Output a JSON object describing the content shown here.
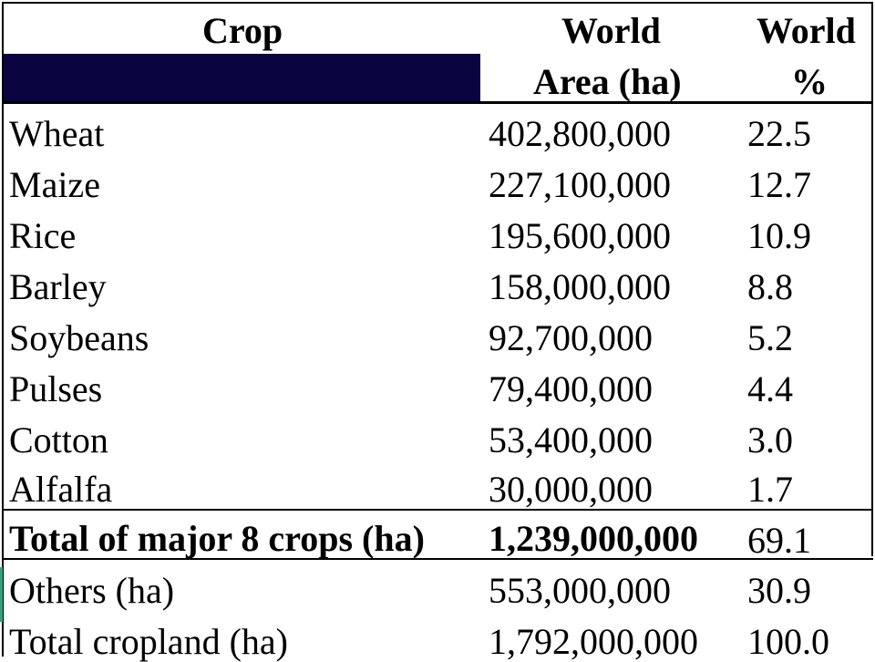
{
  "header": {
    "crop": "Crop",
    "area_line1": "World",
    "area_line2": "Area (ha)",
    "pct_line1": "World",
    "pct_line2": "%"
  },
  "rows": [
    {
      "crop": "Wheat",
      "area": "402,800,000",
      "pct": "22.5"
    },
    {
      "crop": "Maize",
      "area": "227,100,000",
      "pct": "12.7"
    },
    {
      "crop": "Rice",
      "area": "195,600,000",
      "pct": "10.9"
    },
    {
      "crop": "Barley",
      "area": "158,000,000",
      "pct": "8.8"
    },
    {
      "crop": "Soybeans",
      "area": "92,700,000",
      "pct": "5.2"
    },
    {
      "crop": "Pulses",
      "area": "79,400,000",
      "pct": "4.4"
    },
    {
      "crop": "Cotton",
      "area": "53,400,000",
      "pct": "3.0"
    },
    {
      "crop": "Alfalfa",
      "area": "30,000,000",
      "pct": "1.7"
    }
  ],
  "total_major": {
    "crop": "Total of major 8 crops (ha)",
    "area": "1,239,000,000",
    "pct": "69.1"
  },
  "others": {
    "crop": "Others (ha)",
    "area": "553,000,000",
    "pct": "30.9"
  },
  "total_cropland": {
    "crop": "Total cropland (ha)",
    "area": "1,792,000,000",
    "pct": "100.0"
  },
  "colors": {
    "banner": "#0a0440",
    "text": "#000000",
    "background": "#ffffff"
  }
}
